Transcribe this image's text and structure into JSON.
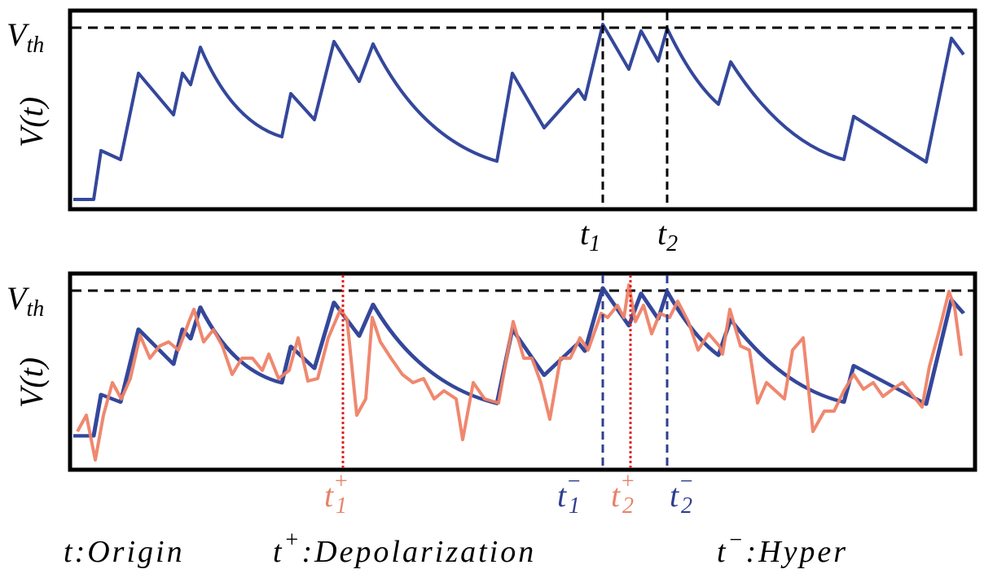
{
  "top_panel": {
    "threshold_label": {
      "main": "V",
      "sub": "th"
    },
    "y_label": "V(t)",
    "markers": [
      {
        "main": "t",
        "sub": "1"
      },
      {
        "main": "t",
        "sub": "2"
      }
    ]
  },
  "bottom_panel": {
    "threshold_label": {
      "main": "V",
      "sub": "th"
    },
    "y_label": "V(t)",
    "markers": [
      {
        "main": "t",
        "sub": "1",
        "sup": "+"
      },
      {
        "main": "t",
        "sub": "1",
        "sup": "−"
      },
      {
        "main": "t",
        "sub": "2",
        "sup": "+"
      },
      {
        "main": "t",
        "sub": "2",
        "sup": "−"
      }
    ]
  },
  "legend": [
    {
      "symbol": "t",
      "separator": ":",
      "text": "Origin"
    },
    {
      "symbol": "t",
      "sup": "+",
      "separator": ":",
      "text": "Depolarization"
    },
    {
      "symbol": "t",
      "sup": "−",
      "separator": ":",
      "text": "Hyper"
    }
  ]
}
